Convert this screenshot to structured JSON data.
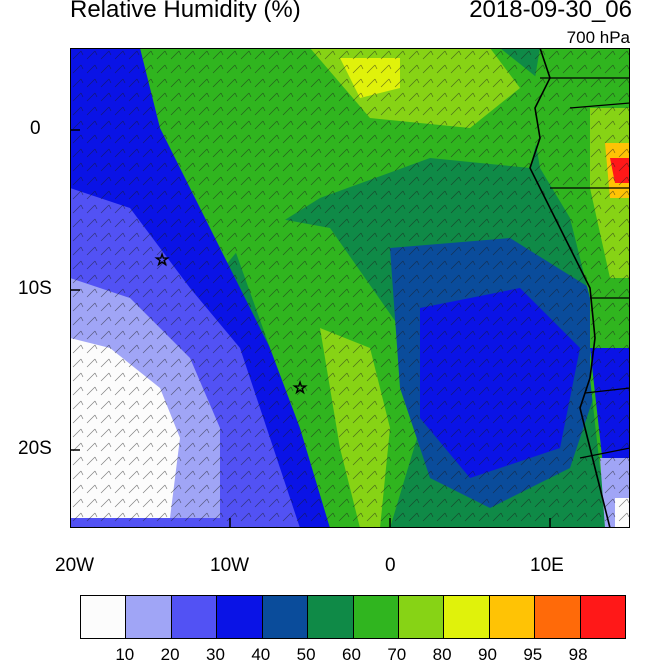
{
  "header": {
    "title": "Relative Humidity (%)",
    "datetime": "2018-09-30_06",
    "level": "700 hPa"
  },
  "map": {
    "lon_range": [
      -20,
      15
    ],
    "lat_range": [
      -25,
      5
    ],
    "x_ticks": [
      "20W",
      "10W",
      "0",
      "10E"
    ],
    "y_ticks": [
      "0",
      "10S",
      "20S"
    ],
    "markers": [
      {
        "type": "star",
        "lon": -14.3,
        "lat": -8.0
      },
      {
        "type": "star",
        "lon": -5.6,
        "lat": -16.0
      }
    ],
    "wind_barbs": true,
    "coastline": "West/Southwest Africa"
  },
  "colorbar": {
    "labels": [
      "10",
      "20",
      "30",
      "40",
      "50",
      "60",
      "70",
      "80",
      "90",
      "95",
      "98"
    ],
    "colors": [
      "#fcfcfc",
      "#a0a5f6",
      "#5252f4",
      "#0a13e6",
      "#0a4c9b",
      "#0f8a47",
      "#30b51f",
      "#87d315",
      "#e0f20b",
      "#ffc305",
      "#ff6a09",
      "#ff1818"
    ]
  }
}
